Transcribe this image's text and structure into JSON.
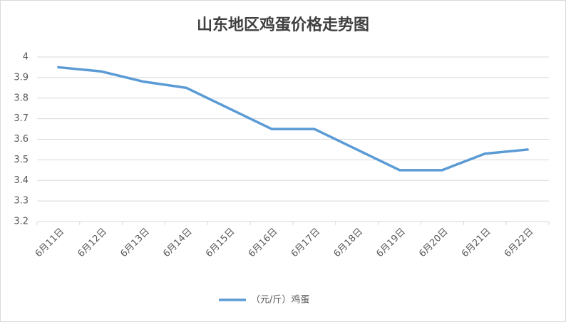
{
  "chart_data": {
    "type": "line",
    "title": "山东地区鸡蛋价格走势图",
    "categories": [
      "6月11日",
      "6月12日",
      "6月13日",
      "6月14日",
      "6月15日",
      "6月16日",
      "6月17日",
      "6月18日",
      "6月19日",
      "6月20日",
      "6月21日",
      "6月22日"
    ],
    "series": [
      {
        "name": "（元/斤）鸡蛋",
        "color": "#5b9bd5",
        "values": [
          3.95,
          3.93,
          3.88,
          3.85,
          3.75,
          3.65,
          3.65,
          3.55,
          3.45,
          3.45,
          3.53,
          3.55
        ]
      }
    ],
    "ylim": [
      3.2,
      4
    ],
    "yticks": [
      3.2,
      3.3,
      3.4,
      3.5,
      3.6,
      3.7,
      3.8,
      3.9,
      4
    ],
    "grid": true,
    "legend": "bottom"
  }
}
